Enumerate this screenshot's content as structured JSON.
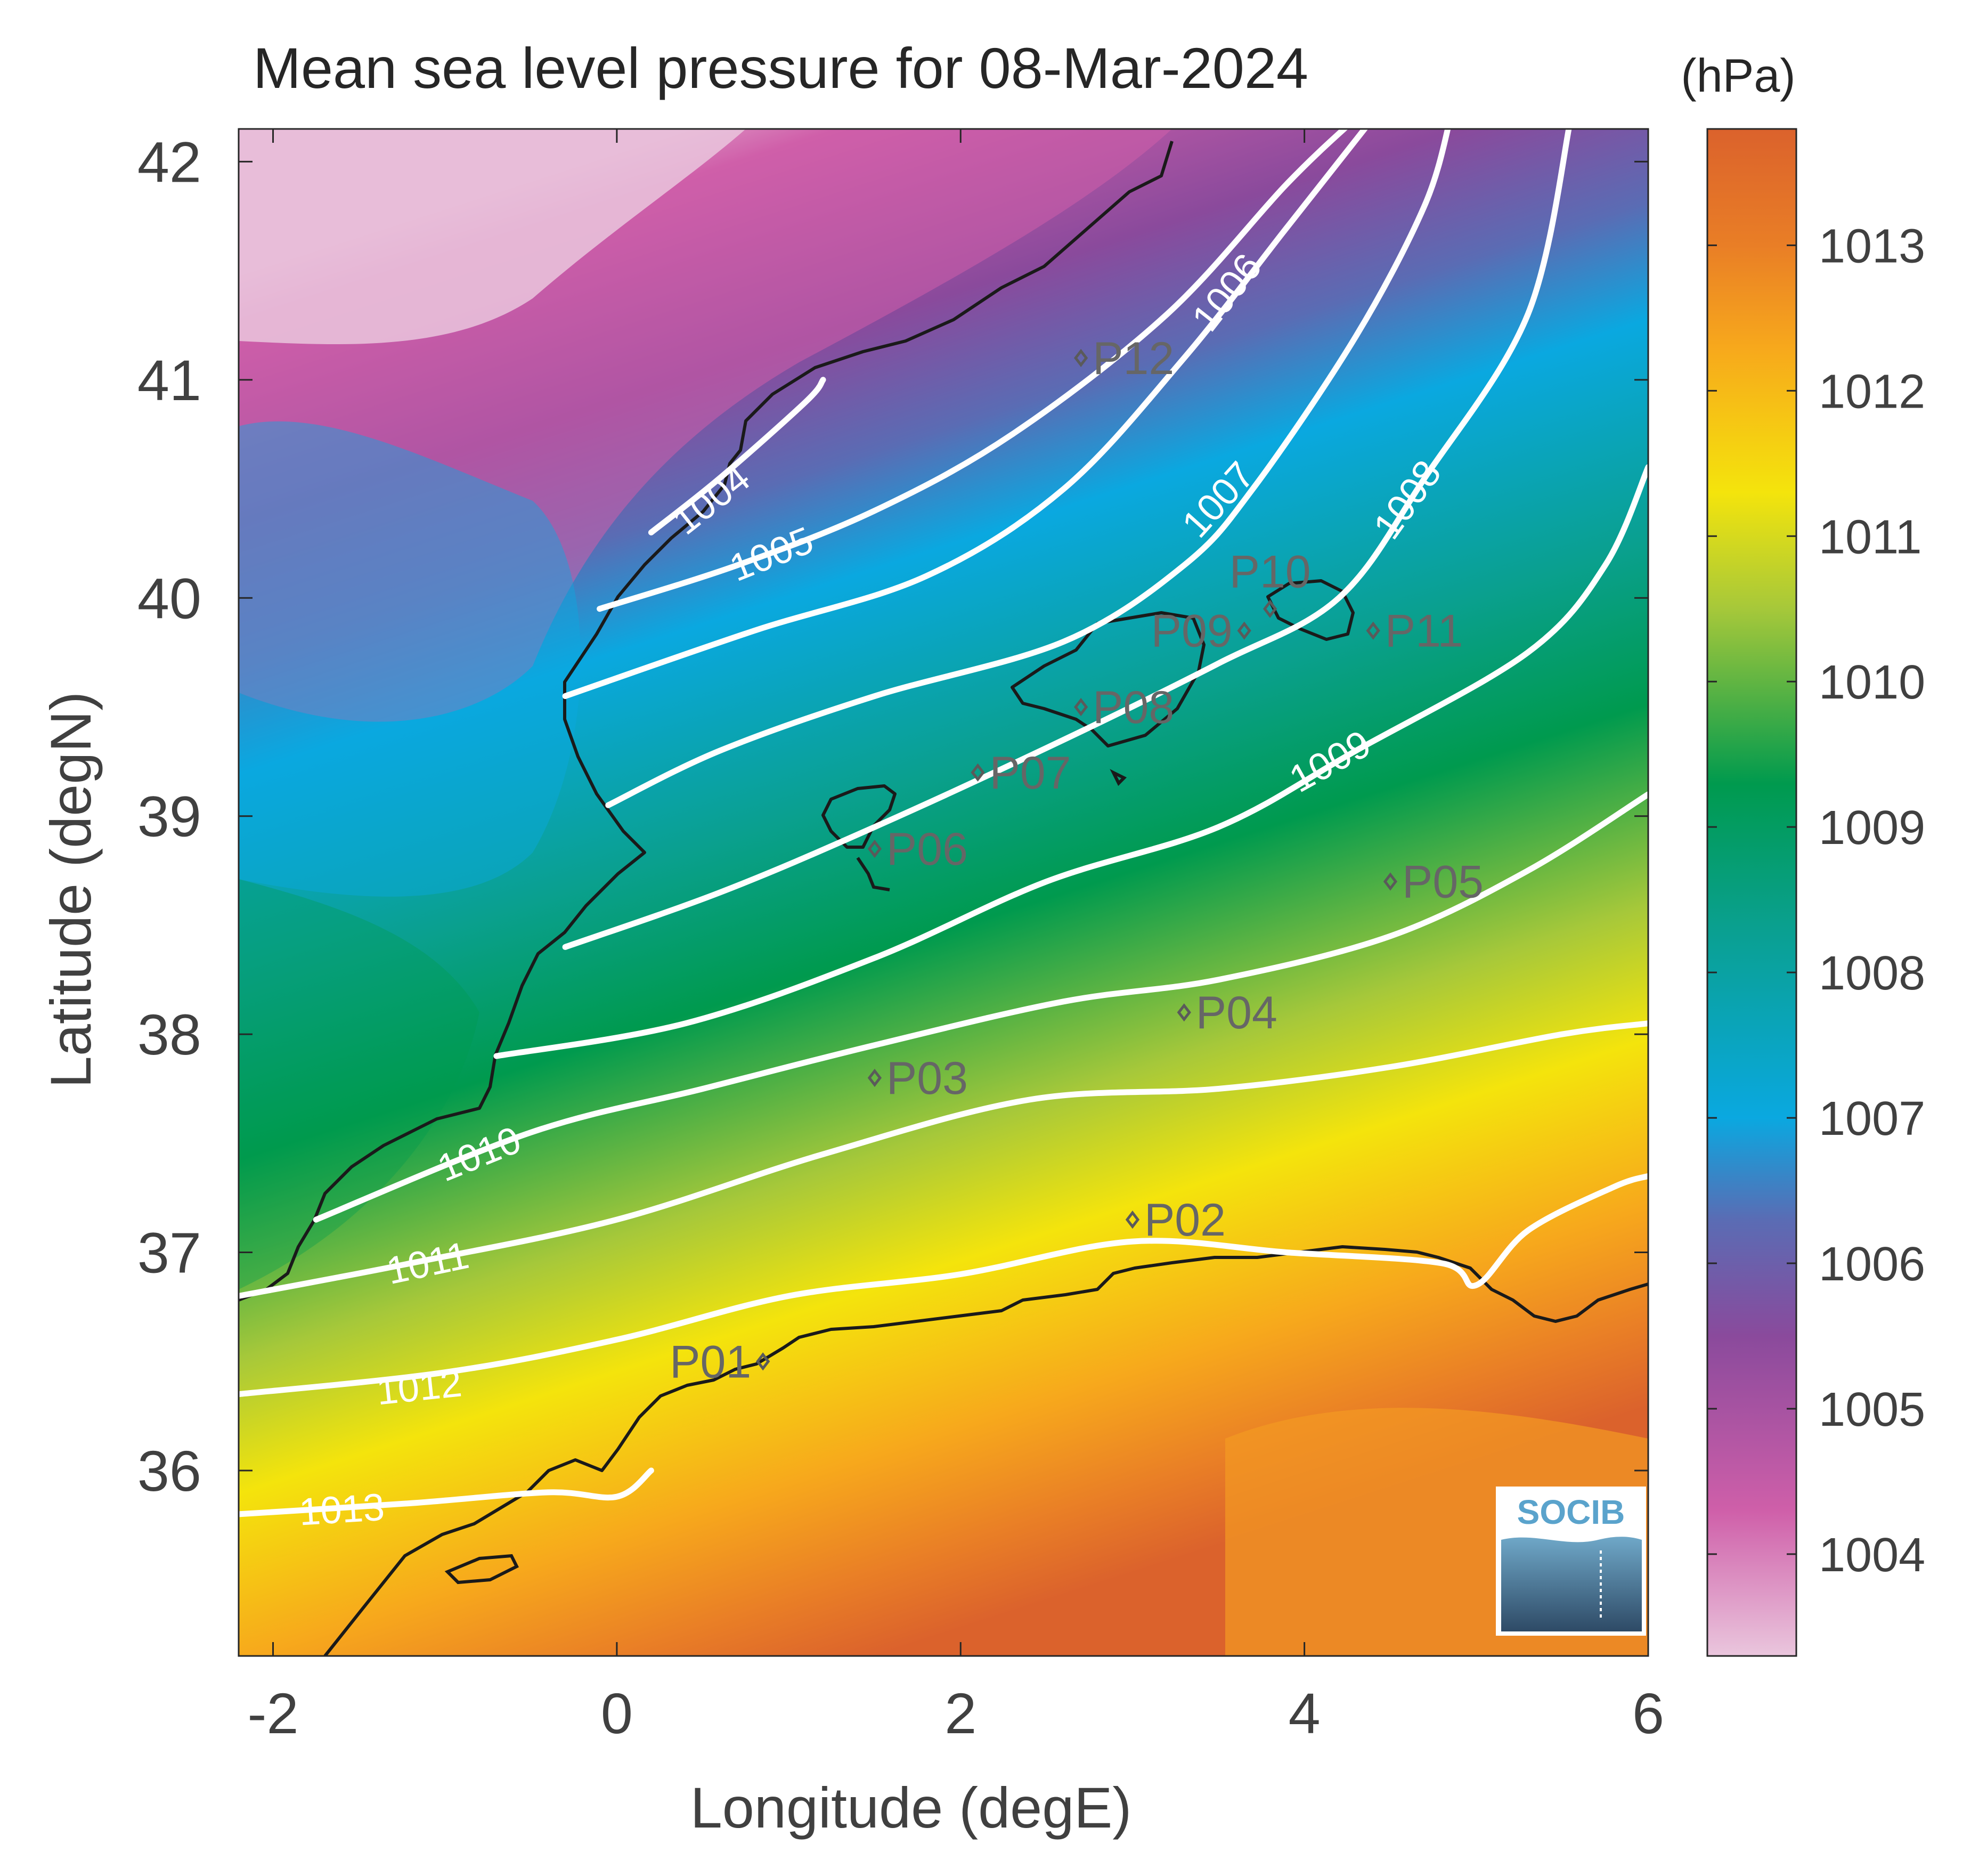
{
  "title": "Mean sea level pressure for 08-Mar-2024",
  "colorbar": {
    "unit_label": "(hPa)",
    "range": [
      1003.3,
      1013.8
    ],
    "ticks": [
      1013,
      1012,
      1011,
      1010,
      1009,
      1008,
      1007,
      1006,
      1005,
      1004
    ],
    "tick_labels": [
      "1013",
      "1012",
      "1011",
      "1010",
      "1009",
      "1008",
      "1007",
      "1006",
      "1005",
      "1004"
    ],
    "colormap": [
      {
        "value": 1003.3,
        "color": "#eac6dd"
      },
      {
        "value": 1004.3,
        "color": "#cf5fa9"
      },
      {
        "value": 1005.5,
        "color": "#8a4a9c"
      },
      {
        "value": 1006.3,
        "color": "#5a6cb4"
      },
      {
        "value": 1007.0,
        "color": "#0aa8e0"
      },
      {
        "value": 1008.3,
        "color": "#0aa090"
      },
      {
        "value": 1009.3,
        "color": "#009a4e"
      },
      {
        "value": 1010.5,
        "color": "#a6c83a"
      },
      {
        "value": 1011.3,
        "color": "#f4e40c"
      },
      {
        "value": 1012.3,
        "color": "#f7a81c"
      },
      {
        "value": 1013.0,
        "color": "#e97e26"
      },
      {
        "value": 1013.8,
        "color": "#db622c"
      }
    ]
  },
  "chart_data": {
    "type": "heatmap",
    "variable": "Mean sea level pressure",
    "date": "08-Mar-2024",
    "xlabel": "Longitude (degE)",
    "ylabel": "Latitude (degN)",
    "xlim": [
      -2.2,
      6.0
    ],
    "ylim": [
      35.15,
      42.15
    ],
    "x_ticks": [
      -2,
      0,
      2,
      4,
      6
    ],
    "x_tick_labels": [
      "-2",
      "0",
      "2",
      "4",
      "6"
    ],
    "y_ticks": [
      36,
      37,
      38,
      39,
      40,
      41,
      42
    ],
    "y_tick_labels": [
      "36",
      "37",
      "38",
      "39",
      "40",
      "41",
      "42"
    ],
    "grid": false,
    "contours": [
      {
        "level": 1004,
        "label": "1004",
        "points": [
          [
            0.2,
            40.3
          ],
          [
            0.6,
            40.55
          ],
          [
            1.1,
            40.9
          ],
          [
            1.2,
            41.0
          ]
        ],
        "label_at": [
          0.55,
          40.45
        ]
      },
      {
        "level": 1005,
        "label": "1005",
        "points": [
          [
            -0.1,
            39.95
          ],
          [
            0.7,
            40.15
          ],
          [
            1.5,
            40.4
          ],
          [
            2.3,
            40.75
          ],
          [
            3.2,
            41.3
          ],
          [
            3.9,
            41.9
          ],
          [
            4.3,
            42.2
          ]
        ],
        "label_at": [
          0.9,
          40.2
        ]
      },
      {
        "level": 1006,
        "label": "1006",
        "points": [
          [
            -0.3,
            39.55
          ],
          [
            0.8,
            39.85
          ],
          [
            1.8,
            40.1
          ],
          [
            2.6,
            40.5
          ],
          [
            3.3,
            41.1
          ],
          [
            3.9,
            41.7
          ],
          [
            4.4,
            42.2
          ]
        ],
        "label_at": [
          3.55,
          41.4
        ]
      },
      {
        "level": 1007,
        "label": "1007",
        "points": [
          [
            -0.05,
            39.05
          ],
          [
            0.6,
            39.3
          ],
          [
            1.5,
            39.55
          ],
          [
            2.6,
            39.8
          ],
          [
            3.3,
            40.15
          ],
          [
            3.7,
            40.5
          ],
          [
            4.3,
            41.2
          ],
          [
            4.7,
            41.8
          ],
          [
            4.85,
            42.2
          ]
        ],
        "label_at": [
          3.5,
          40.45
        ]
      },
      {
        "level": 1008,
        "label": "1008",
        "points": [
          [
            -0.3,
            38.4
          ],
          [
            0.6,
            38.65
          ],
          [
            1.5,
            38.95
          ],
          [
            2.6,
            39.35
          ],
          [
            3.5,
            39.7
          ],
          [
            4.2,
            40.0
          ],
          [
            4.7,
            40.55
          ],
          [
            5.3,
            41.3
          ],
          [
            5.55,
            42.2
          ]
        ],
        "label_at": [
          4.6,
          40.45
        ]
      },
      {
        "level": 1009,
        "label": "1009",
        "points": [
          [
            -0.7,
            37.9
          ],
          [
            0.4,
            38.05
          ],
          [
            1.5,
            38.35
          ],
          [
            2.5,
            38.7
          ],
          [
            3.5,
            38.95
          ],
          [
            4.3,
            39.3
          ],
          [
            5.3,
            39.75
          ],
          [
            5.75,
            40.15
          ],
          [
            6.0,
            40.6
          ]
        ],
        "label_at": [
          4.15,
          39.25
        ]
      },
      {
        "level": 1010,
        "label": "1010",
        "points": [
          [
            -1.75,
            37.15
          ],
          [
            -0.5,
            37.55
          ],
          [
            0.5,
            37.75
          ],
          [
            1.5,
            37.95
          ],
          [
            2.6,
            38.15
          ],
          [
            3.5,
            38.25
          ],
          [
            4.5,
            38.45
          ],
          [
            5.3,
            38.75
          ],
          [
            6.0,
            39.1
          ]
        ],
        "label_at": [
          -0.8,
          37.45
        ]
      },
      {
        "level": 1011,
        "label": "1011",
        "points": [
          [
            -2.2,
            36.8
          ],
          [
            -1.2,
            36.95
          ],
          [
            0.0,
            37.15
          ],
          [
            1.2,
            37.45
          ],
          [
            2.4,
            37.7
          ],
          [
            3.5,
            37.75
          ],
          [
            4.5,
            37.85
          ],
          [
            5.5,
            38.0
          ],
          [
            6.0,
            38.05
          ]
        ],
        "label_at": [
          -1.1,
          36.95
        ]
      },
      {
        "level": 1012,
        "label": "1012",
        "points": [
          [
            -2.2,
            36.35
          ],
          [
            -1.0,
            36.45
          ],
          [
            0.0,
            36.6
          ],
          [
            1.0,
            36.8
          ],
          [
            2.0,
            36.9
          ],
          [
            3.0,
            37.05
          ],
          [
            3.9,
            37.0
          ],
          [
            4.8,
            36.95
          ],
          [
            5.0,
            36.85
          ],
          [
            5.3,
            37.1
          ],
          [
            5.8,
            37.3
          ],
          [
            6.0,
            37.35
          ]
        ],
        "label_at": [
          -1.15,
          36.38
        ]
      },
      {
        "level": 1013,
        "label": "1013",
        "points": [
          [
            -2.2,
            35.8
          ],
          [
            -1.2,
            35.85
          ],
          [
            -0.4,
            35.9
          ],
          [
            0.0,
            35.88
          ],
          [
            0.2,
            36.0
          ]
        ],
        "label_at": [
          -1.6,
          35.82
        ]
      }
    ],
    "stations": [
      {
        "name": "P01",
        "lon": 0.85,
        "lat": 36.5,
        "label_side": "left"
      },
      {
        "name": "P02",
        "lon": 3.0,
        "lat": 37.15,
        "label_side": "right"
      },
      {
        "name": "P03",
        "lon": 1.5,
        "lat": 37.8,
        "label_side": "right"
      },
      {
        "name": "P04",
        "lon": 3.3,
        "lat": 38.1,
        "label_side": "right"
      },
      {
        "name": "P05",
        "lon": 4.5,
        "lat": 38.7,
        "label_side": "right"
      },
      {
        "name": "P06",
        "lon": 1.5,
        "lat": 38.85,
        "label_side": "right"
      },
      {
        "name": "P07",
        "lon": 2.1,
        "lat": 39.2,
        "label_side": "right"
      },
      {
        "name": "P08",
        "lon": 2.7,
        "lat": 39.5,
        "label_side": "right"
      },
      {
        "name": "P09",
        "lon": 3.65,
        "lat": 39.85,
        "label_side": "left"
      },
      {
        "name": "P10",
        "lon": 3.8,
        "lat": 39.95,
        "label_side": "above"
      },
      {
        "name": "P11",
        "lon": 4.4,
        "lat": 39.85,
        "label_side": "right"
      },
      {
        "name": "P12",
        "lon": 2.7,
        "lat": 41.1,
        "label_side": "right"
      }
    ]
  },
  "logo": {
    "text": "SOCIB"
  }
}
